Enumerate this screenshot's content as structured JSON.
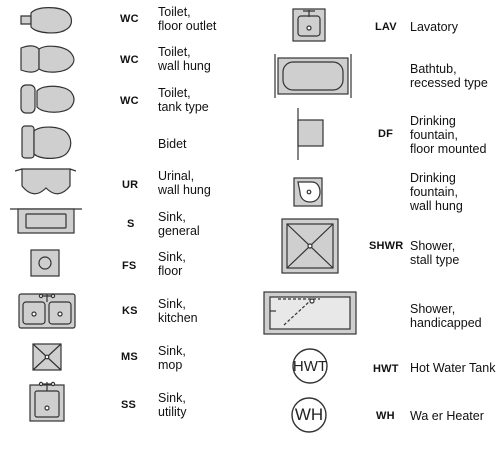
{
  "legend": {
    "left": [
      {
        "icon": "toilet-floor-outlet-icon",
        "abbr": "WC",
        "label": "Toilet,\nfloor outlet"
      },
      {
        "icon": "toilet-wall-hung-icon",
        "abbr": "WC",
        "label": "Toilet,\nwall hung"
      },
      {
        "icon": "toilet-tank-type-icon",
        "abbr": "WC",
        "label": "Toilet,\ntank type"
      },
      {
        "icon": "bidet-icon",
        "abbr": "",
        "label": "Bidet"
      },
      {
        "icon": "urinal-wall-hung-icon",
        "abbr": "UR",
        "label": "Urinal,\nwall hung"
      },
      {
        "icon": "sink-general-icon",
        "abbr": "S",
        "label": "Sink,\ngeneral"
      },
      {
        "icon": "sink-floor-icon",
        "abbr": "FS",
        "label": "Sink,\nfloor"
      },
      {
        "icon": "sink-kitchen-icon",
        "abbr": "KS",
        "label": "Sink,\nkitchen"
      },
      {
        "icon": "sink-mop-icon",
        "abbr": "MS",
        "label": "Sink,\nmop"
      },
      {
        "icon": "sink-utility-icon",
        "abbr": "SS",
        "label": "Sink,\nutility"
      }
    ],
    "right": [
      {
        "icon": "lavatory-icon",
        "abbr": "LAV",
        "label": "Lavatory"
      },
      {
        "icon": "bathtub-recessed-icon",
        "abbr": "",
        "label": "Bathtub,\nrecessed type"
      },
      {
        "icon": "drinking-fountain-floor-icon",
        "abbr": "DF",
        "label": "Drinking\nfountain,\nfloor mounted"
      },
      {
        "icon": "drinking-fountain-wall-icon",
        "abbr": "",
        "label": "Drinking\nfountain,\nwall hung"
      },
      {
        "icon": "shower-stall-icon",
        "abbr": "SHWR",
        "label": "Shower,\nstall type"
      },
      {
        "icon": "shower-handicapped-icon",
        "abbr": "",
        "label": "Shower,\nhandicapped"
      },
      {
        "icon": "hot-water-tank-icon",
        "abbr": "HWT",
        "label": "Hot Water Tank",
        "symbol_text": "HWT"
      },
      {
        "icon": "water-heater-icon",
        "abbr": "WH",
        "label": "Wa  er Heater",
        "symbol_text": "WH"
      }
    ]
  }
}
